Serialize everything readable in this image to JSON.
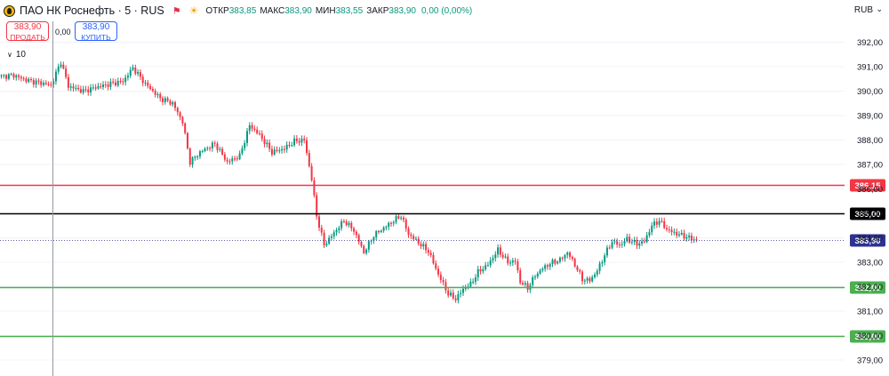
{
  "header": {
    "symbol": "ПАО НК Роснефть · 5 · RUS",
    "open_label": "ОТКР",
    "open": "383,85",
    "high_label": "МАКС",
    "high": "383,90",
    "low_label": "МИН",
    "low": "383,55",
    "close_label": "ЗАКР",
    "close": "383,90",
    "change": "0,00 (0,00%)",
    "flag_icon": "flag-icon",
    "session_icon": "sun-icon",
    "logo_icon": "rosneft-logo-icon"
  },
  "currency": "RUB",
  "trade": {
    "sell_price": "383,90",
    "sell_label": "ПРОДАТЬ",
    "spread": "0,00",
    "buy_price": "383,90",
    "buy_label": "КУПИТЬ"
  },
  "interval": {
    "value": "10"
  },
  "colors": {
    "up": "#089981",
    "down": "#f23645",
    "level_red": "#f23645",
    "level_black": "#000000",
    "level_green": "#4caf50",
    "price_tag": "#2e3191"
  },
  "chart_data": {
    "type": "candlestick",
    "ylim": [
      378.5,
      392.6
    ],
    "y_ticks": [
      "392,00",
      "391,00",
      "390,00",
      "389,00",
      "388,00",
      "387,00",
      "386,00",
      "385,00",
      "384,00",
      "383,00",
      "382,00",
      "381,00",
      "380,00",
      "379,00"
    ],
    "y_tick_values": [
      392,
      391,
      390,
      389,
      388,
      387,
      386,
      385,
      384,
      383,
      382,
      381,
      380,
      379
    ],
    "levels": [
      {
        "value": 386.15,
        "label": "386,15",
        "color": "#f23645"
      },
      {
        "value": 385.0,
        "label": "385,00",
        "color": "#000000"
      },
      {
        "value": 382.0,
        "label": "382,00",
        "color": "#4caf50"
      },
      {
        "value": 380.0,
        "label": "380,00",
        "color": "#4caf50"
      }
    ],
    "last_price": {
      "value": 383.9,
      "label": "383,90"
    },
    "anchors": [
      [
        0,
        390.6
      ],
      [
        5,
        390.65
      ],
      [
        10,
        390.45
      ],
      [
        15,
        390.35
      ],
      [
        20,
        390.25
      ],
      [
        24,
        391.2
      ],
      [
        27,
        390.2
      ],
      [
        33,
        390.0
      ],
      [
        38,
        390.15
      ],
      [
        44,
        390.3
      ],
      [
        49,
        390.4
      ],
      [
        53,
        390.95
      ],
      [
        58,
        390.3
      ],
      [
        64,
        389.7
      ],
      [
        69,
        389.5
      ],
      [
        73,
        388.75
      ],
      [
        76,
        387.1
      ],
      [
        80,
        387.5
      ],
      [
        86,
        387.85
      ],
      [
        91,
        387.1
      ],
      [
        96,
        387.35
      ],
      [
        100,
        388.6
      ],
      [
        104,
        388.2
      ],
      [
        109,
        387.5
      ],
      [
        114,
        387.65
      ],
      [
        118,
        387.95
      ],
      [
        122,
        388.0
      ],
      [
        125,
        386.4
      ],
      [
        127,
        384.9
      ],
      [
        130,
        383.7
      ],
      [
        134,
        384.2
      ],
      [
        138,
        384.7
      ],
      [
        142,
        384.3
      ],
      [
        146,
        383.4
      ],
      [
        150,
        384.1
      ],
      [
        154,
        384.4
      ],
      [
        158,
        384.7
      ],
      [
        161,
        384.9
      ],
      [
        164,
        384.15
      ],
      [
        168,
        383.8
      ],
      [
        172,
        383.45
      ],
      [
        176,
        382.5
      ],
      [
        180,
        381.7
      ],
      [
        183,
        381.5
      ],
      [
        186,
        381.9
      ],
      [
        189,
        382.1
      ],
      [
        192,
        382.6
      ],
      [
        196,
        382.9
      ],
      [
        200,
        383.5
      ],
      [
        204,
        383.0
      ],
      [
        207,
        383.05
      ],
      [
        209,
        382.2
      ],
      [
        212,
        381.95
      ],
      [
        215,
        382.45
      ],
      [
        218,
        382.75
      ],
      [
        221,
        382.95
      ],
      [
        225,
        383.1
      ],
      [
        228,
        383.4
      ],
      [
        231,
        382.9
      ],
      [
        234,
        382.3
      ],
      [
        237,
        382.25
      ],
      [
        240,
        382.65
      ],
      [
        243,
        383.3
      ],
      [
        246,
        383.85
      ],
      [
        249,
        383.7
      ],
      [
        252,
        383.95
      ],
      [
        256,
        383.75
      ],
      [
        259,
        383.85
      ],
      [
        262,
        384.5
      ],
      [
        265,
        384.7
      ],
      [
        268,
        384.35
      ],
      [
        271,
        384.2
      ],
      [
        274,
        384.1
      ],
      [
        277,
        384.0
      ],
      [
        280,
        383.9
      ]
    ]
  }
}
